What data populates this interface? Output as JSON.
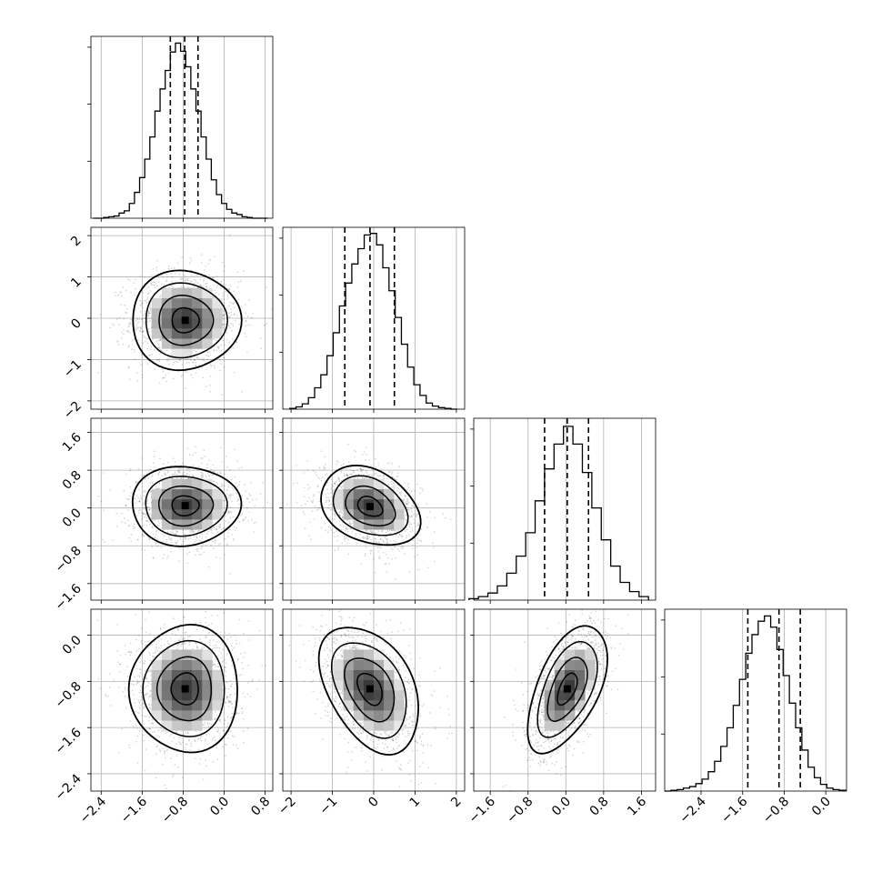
{
  "chart_data": {
    "type": "scatter",
    "layout": "corner",
    "grid": true,
    "parameters": [
      {
        "hist": {
          "edges": [
            -2.55,
            -2.45,
            -2.35,
            -2.25,
            -2.15,
            -2.05,
            -1.95,
            -1.85,
            -1.75,
            -1.65,
            -1.55,
            -1.45,
            -1.35,
            -1.25,
            -1.15,
            -1.05,
            -0.95,
            -0.85,
            -0.75,
            -0.65,
            -0.55,
            -0.45,
            -0.35,
            -0.25,
            -0.15,
            -0.05,
            0.05,
            0.15,
            0.25,
            0.35,
            0.45,
            0.55,
            0.65,
            0.75,
            0.85
          ],
          "counts": [
            0,
            0,
            1,
            2,
            3,
            7,
            10,
            20,
            35,
            55,
            80,
            110,
            145,
            175,
            200,
            225,
            237,
            226,
            205,
            175,
            145,
            110,
            80,
            52,
            32,
            20,
            12,
            7,
            5,
            2,
            1,
            0,
            0,
            0
          ],
          "max": 240
        },
        "quantiles": [
          -1.05,
          -0.77,
          -0.51
        ]
      },
      {
        "hist": {
          "edges": [
            -2.03,
            -1.88,
            -1.73,
            -1.58,
            -1.43,
            -1.28,
            -1.13,
            -0.98,
            -0.83,
            -0.68,
            -0.53,
            -0.38,
            -0.23,
            -0.08,
            0.07,
            0.22,
            0.37,
            0.52,
            0.67,
            0.82,
            0.97,
            1.12,
            1.27,
            1.42,
            1.57,
            1.72,
            1.87,
            2.02
          ],
          "counts": [
            1,
            3,
            7,
            15,
            28,
            45,
            70,
            100,
            135,
            165,
            190,
            210,
            228,
            230,
            215,
            185,
            155,
            120,
            85,
            55,
            32,
            18,
            8,
            4,
            2,
            1,
            0
          ],
          "max": 232
        },
        "quantiles": [
          -0.7,
          -0.09,
          0.5
        ]
      },
      {
        "hist": {
          "edges": [
            -2.05,
            -1.85,
            -1.65,
            -1.45,
            -1.25,
            -1.05,
            -0.85,
            -0.65,
            -0.45,
            -0.25,
            -0.05,
            0.15,
            0.35,
            0.55,
            0.75,
            0.95,
            1.15,
            1.35,
            1.55,
            1.75
          ],
          "counts": [
            2,
            5,
            10,
            20,
            38,
            62,
            95,
            140,
            185,
            220,
            245,
            220,
            180,
            130,
            85,
            48,
            25,
            12,
            5
          ],
          "max": 250
        },
        "quantiles": [
          -0.45,
          0.03,
          0.48
        ]
      },
      {
        "hist": {
          "edges": [
            -3.1,
            -2.98,
            -2.86,
            -2.74,
            -2.62,
            -2.5,
            -2.38,
            -2.26,
            -2.14,
            -2.02,
            -1.9,
            -1.78,
            -1.66,
            -1.54,
            -1.42,
            -1.3,
            -1.18,
            -1.06,
            -0.94,
            -0.82,
            -0.7,
            -0.58,
            -0.46,
            -0.34,
            -0.22,
            -0.1,
            0.02,
            0.14,
            0.26,
            0.38
          ],
          "counts": [
            0,
            1,
            2,
            4,
            6,
            10,
            16,
            26,
            40,
            60,
            85,
            115,
            150,
            185,
            210,
            228,
            235,
            220,
            190,
            155,
            118,
            85,
            55,
            32,
            18,
            9,
            4,
            2,
            1
          ],
          "max": 238
        },
        "quantiles": [
          -1.5,
          -0.9,
          -0.49
        ]
      }
    ],
    "panels_2d": [
      {
        "row": 1,
        "col": 0,
        "x_range": [
          -2.6,
          0.95
        ],
        "y_range": [
          -2.2,
          2.2
        ],
        "center": [
          -0.76,
          -0.05
        ],
        "sigma": [
          0.53,
          0.6
        ],
        "rho": 0.0
      },
      {
        "row": 2,
        "col": 0,
        "x_range": [
          -2.6,
          0.95
        ],
        "y_range": [
          -1.95,
          1.9
        ],
        "center": [
          -0.76,
          0.05
        ],
        "sigma": [
          0.53,
          0.42
        ],
        "rho": 0.0
      },
      {
        "row": 2,
        "col": 1,
        "x_range": [
          -2.2,
          2.2
        ],
        "y_range": [
          -1.95,
          1.9
        ],
        "center": [
          -0.09,
          0.03
        ],
        "sigma": [
          0.6,
          0.42
        ],
        "rho": -0.3
      },
      {
        "row": 3,
        "col": 0,
        "x_range": [
          -2.6,
          0.95
        ],
        "y_range": [
          -2.7,
          0.45
        ],
        "center": [
          -0.76,
          -0.93
        ],
        "sigma": [
          0.53,
          0.55
        ],
        "rho": 0.0
      },
      {
        "row": 3,
        "col": 1,
        "x_range": [
          -2.2,
          2.2
        ],
        "y_range": [
          -2.7,
          0.45
        ],
        "center": [
          -0.09,
          -0.93
        ],
        "sigma": [
          0.6,
          0.55
        ],
        "rho": -0.4
      },
      {
        "row": 3,
        "col": 2,
        "x_range": [
          -1.95,
          1.9
        ],
        "y_range": [
          -2.7,
          0.45
        ],
        "center": [
          0.03,
          -0.93
        ],
        "sigma": [
          0.42,
          0.55
        ],
        "rho": 0.55
      }
    ],
    "x_axes": [
      {
        "range": [
          -2.6,
          0.95
        ],
        "tick_values": [
          -2.4,
          -1.6,
          -0.8,
          0.0,
          0.8
        ],
        "tick_labels": [
          "−2.4",
          "−1.6",
          "−0.8",
          "0.0",
          "0.8"
        ]
      },
      {
        "range": [
          -2.2,
          2.2
        ],
        "tick_values": [
          -2,
          -1,
          0,
          1,
          2
        ],
        "tick_labels": [
          "−2",
          "−1",
          "0",
          "1",
          "2"
        ]
      },
      {
        "range": [
          -1.95,
          1.9
        ],
        "tick_values": [
          -1.6,
          -0.8,
          0.0,
          0.8,
          1.6
        ],
        "tick_labels": [
          "−1.6",
          "−0.8",
          "0.0",
          "0.8",
          "1.6"
        ]
      },
      {
        "range": [
          -3.1,
          0.4
        ],
        "tick_values": [
          -2.4,
          -1.6,
          -0.8,
          0.0
        ],
        "tick_labels": [
          "−2.4",
          "−1.6",
          "−0.8",
          "0.0"
        ]
      }
    ],
    "y_axes": [
      null,
      {
        "range": [
          -2.2,
          2.2
        ],
        "tick_values": [
          -2,
          -1,
          0,
          1,
          2
        ],
        "tick_labels": [
          "−2",
          "−1",
          "0",
          "1",
          "2"
        ]
      },
      {
        "range": [
          -1.95,
          1.9
        ],
        "tick_values": [
          -1.6,
          -0.8,
          0.0,
          0.8,
          1.6
        ],
        "tick_labels": [
          "−1.6",
          "−0.8",
          "0.0",
          "0.8",
          "1.6"
        ]
      },
      {
        "range": [
          -2.7,
          0.45
        ],
        "tick_values": [
          -2.4,
          -1.6,
          -0.8,
          0.0
        ],
        "tick_labels": [
          "−2.4",
          "−1.6",
          "−0.8",
          "0.0"
        ]
      }
    ],
    "title": "",
    "xlabel": "",
    "ylabel": ""
  }
}
